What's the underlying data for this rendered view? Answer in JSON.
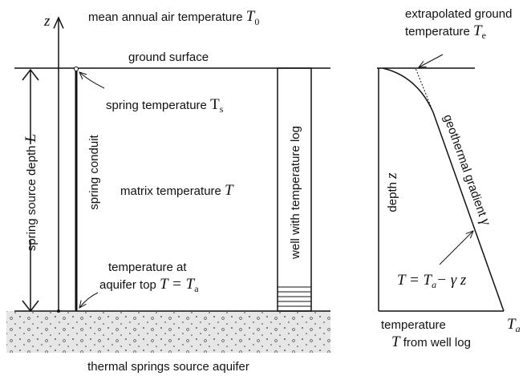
{
  "left_panel": {
    "z_axis": "z",
    "air_temperature": {
      "text": "mean annual air temperature",
      "symbol": "T",
      "subscript": "0"
    },
    "ground_surface": "ground surface",
    "spring_temperature": {
      "text": "spring temperature",
      "symbol": "T",
      "subscript": "s"
    },
    "source_depth": {
      "text": "spring source depth",
      "symbol": "L"
    },
    "spring_conduit": "spring conduit",
    "matrix_temperature": {
      "text": "matrix temperature",
      "symbol": "T"
    },
    "well": "well with temperature log",
    "aquifer_top": {
      "line1": "temperature at",
      "line2": "aquifer top",
      "equation": "T = T",
      "subscript": "a"
    },
    "aquifer": "thermal springs source aquifer"
  },
  "right_panel": {
    "extrapolated_temperature": {
      "line1": "extrapolated ground",
      "line2": "temperature",
      "symbol": "T",
      "subscript": "e"
    },
    "depth": {
      "text": "depth",
      "symbol": "z"
    },
    "gradient": {
      "text": "geothermal gradient",
      "symbol": "γ"
    },
    "equation": {
      "lhs": "T = T",
      "subscript": "a",
      "rhs": "− γ z"
    },
    "temperature_axis": {
      "line1": "temperature",
      "symbol": "T",
      "line2": "from well log"
    },
    "bottom_temperature": {
      "symbol": "T",
      "subscript": "a"
    }
  }
}
